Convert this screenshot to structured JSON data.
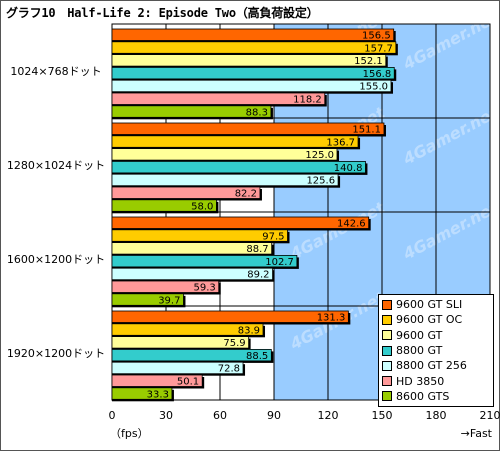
{
  "title": "グラフ10　Half-Life 2: Episode Two（高負荷設定）",
  "watermark": "4Gamer.net",
  "axis": {
    "left_unit": "（fps）",
    "right_note": "→Fast"
  },
  "chart_data": {
    "type": "bar",
    "orientation": "horizontal",
    "categories": [
      "1024×768ドット",
      "1280×1024ドット",
      "1600×1200ドット",
      "1920×1200ドット"
    ],
    "series": [
      {
        "name": "9600 GT SLI",
        "color": "#ff6600",
        "values": [
          156.5,
          151.1,
          142.6,
          131.3
        ]
      },
      {
        "name": "9600 GT OC",
        "color": "#ffcc00",
        "values": [
          157.7,
          136.7,
          97.5,
          83.9
        ]
      },
      {
        "name": "9600 GT",
        "color": "#ffff99",
        "values": [
          152.1,
          125.0,
          88.7,
          75.9
        ]
      },
      {
        "name": "8800 GT",
        "color": "#33cccc",
        "values": [
          156.8,
          140.8,
          102.7,
          88.5
        ]
      },
      {
        "name": "8800 GT 256",
        "color": "#ccffff",
        "values": [
          155.0,
          125.6,
          89.2,
          72.8
        ]
      },
      {
        "name": "HD 3850",
        "color": "#ff9999",
        "values": [
          118.2,
          82.2,
          59.3,
          50.1
        ]
      },
      {
        "name": "8600 GTS",
        "color": "#99cc00",
        "values": [
          88.3,
          58.0,
          39.7,
          33.3
        ]
      }
    ],
    "value_labels": [
      [
        "156.5",
        "151.1",
        "142.6",
        "131.3"
      ],
      [
        "157.7",
        "136.7",
        "97.5",
        "83.9"
      ],
      [
        "152.1",
        "125.0",
        "88.7",
        "75.9"
      ],
      [
        "156.8",
        "140.8",
        "102.7",
        "88.5"
      ],
      [
        "155.0",
        "125.6",
        "89.2",
        "72.8"
      ],
      [
        "118.2",
        "82.2",
        "59.3",
        "50.1"
      ],
      [
        "88.3",
        "58.0",
        "39.7",
        "33.3"
      ]
    ],
    "xlim": [
      0,
      210
    ],
    "xticks": [
      "0",
      "30",
      "60",
      "90",
      "120",
      "150",
      "180",
      "210"
    ],
    "plot_background": "#99ccff",
    "grid": true,
    "legend_position": "bottom-right"
  }
}
